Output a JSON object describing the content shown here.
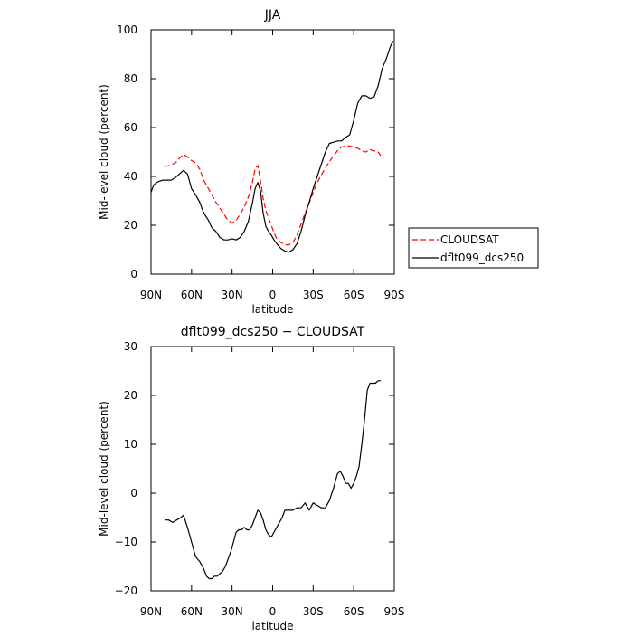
{
  "chart_data": [
    {
      "type": "line",
      "title": "JJA",
      "xlabel": "latitude",
      "ylabel": "Mid-level cloud (percent)",
      "xlim": [
        90,
        -90
      ],
      "ylim": [
        0,
        100
      ],
      "x_ticks": [
        90,
        60,
        30,
        0,
        -30,
        -60,
        -90
      ],
      "x_tick_labels": [
        "90N",
        "60N",
        "30N",
        "0",
        "30S",
        "60S",
        "90S"
      ],
      "y_ticks": [
        0,
        20,
        40,
        60,
        80,
        100
      ],
      "y_tick_labels": [
        "0",
        "20",
        "40",
        "60",
        "80",
        "100"
      ],
      "legend": {
        "placement": "right",
        "entries": [
          "CLOUDSAT",
          "dflt099_dcs250"
        ]
      },
      "series": [
        {
          "name": "CLOUDSAT",
          "color": "#ff0000",
          "dash": "dashed",
          "x": [
            80,
            76,
            72,
            69,
            66,
            63,
            60,
            57,
            54,
            51,
            48,
            45,
            42,
            39,
            36,
            33,
            30,
            27,
            24,
            21,
            18,
            15,
            13,
            11,
            9,
            7,
            5,
            3,
            1,
            -1,
            -3,
            -6,
            -9,
            -12,
            -15,
            -18,
            -21,
            -24,
            -27,
            -30,
            -33,
            -36,
            -39,
            -42,
            -45,
            -48,
            -51,
            -54,
            -57,
            -60,
            -63,
            -66,
            -69,
            -72,
            -75,
            -78,
            -80
          ],
          "y": [
            44,
            44.5,
            45.5,
            47.5,
            49,
            48,
            46.5,
            45.5,
            43,
            38.5,
            35.5,
            32.5,
            29.5,
            27,
            24.5,
            22,
            21,
            22,
            24.5,
            27.5,
            31.5,
            37.5,
            43,
            44.5,
            38,
            31,
            26,
            23,
            20,
            17,
            14.5,
            13,
            12,
            12,
            13,
            16,
            20.5,
            25,
            29,
            33.5,
            37.5,
            40.5,
            43.5,
            46,
            48.5,
            50.5,
            52,
            52.5,
            52.5,
            52,
            51.5,
            50.5,
            50,
            51,
            50.5,
            50,
            48.5
          ]
        },
        {
          "name": "dflt099_dcs250",
          "color": "#000000",
          "dash": "solid",
          "x": [
            90,
            88,
            86,
            84,
            81,
            78,
            75,
            72,
            69,
            66,
            63,
            60,
            57,
            54,
            51,
            48,
            45,
            42,
            39,
            36,
            33,
            30,
            27,
            24,
            21,
            18,
            15,
            13,
            11,
            9,
            7,
            5,
            3,
            1,
            -1,
            -3,
            -6,
            -9,
            -12,
            -15,
            -18,
            -21,
            -24,
            -27,
            -30,
            -33,
            -36,
            -39,
            -42,
            -45,
            -48,
            -51,
            -54,
            -57,
            -60,
            -63,
            -66,
            -69,
            -72,
            -75,
            -78,
            -81,
            -84,
            -87,
            -89
          ],
          "y": [
            33.5,
            36.5,
            37.5,
            38,
            38.5,
            38.5,
            38.5,
            39.5,
            41,
            42.5,
            41,
            35,
            32.5,
            29.5,
            25,
            22.5,
            19,
            17.5,
            15,
            14,
            14,
            14.5,
            14,
            15,
            17.5,
            21.5,
            29,
            35,
            37.5,
            34,
            25,
            19.5,
            17.5,
            16,
            14,
            12.5,
            10.5,
            9.5,
            9,
            10,
            12.5,
            17.5,
            24,
            29.5,
            35,
            40,
            45,
            50,
            53.5,
            54,
            54.5,
            54.5,
            56,
            57,
            63,
            70,
            73,
            73,
            72,
            72.5,
            77,
            84,
            88,
            93,
            95.5
          ]
        }
      ]
    },
    {
      "type": "line",
      "title": "dflt099_dcs250 − CLOUDSAT",
      "xlabel": "latitude",
      "ylabel": "Mid-level cloud (percent)",
      "xlim": [
        90,
        -90
      ],
      "ylim": [
        -20,
        30
      ],
      "x_ticks": [
        90,
        60,
        30,
        0,
        -30,
        -60,
        -90
      ],
      "x_tick_labels": [
        "90N",
        "60N",
        "30N",
        "0",
        "30S",
        "60S",
        "90S"
      ],
      "y_ticks": [
        -20,
        -10,
        0,
        10,
        20,
        30
      ],
      "y_tick_labels": [
        "−20",
        "−10",
        "0",
        "10",
        "20",
        "30"
      ],
      "series": [
        {
          "color": "#000000",
          "dash": "solid",
          "x": [
            80,
            77,
            74,
            71,
            68,
            66,
            63,
            60,
            57,
            54,
            51,
            49,
            47,
            45,
            43,
            41,
            39,
            37,
            35,
            33,
            31,
            29,
            27,
            25,
            23,
            21,
            19,
            17,
            15,
            13,
            11,
            9,
            7,
            5,
            3,
            1,
            -1,
            -3,
            -5,
            -7,
            -9,
            -12,
            -15,
            -18,
            -21,
            -24,
            -27,
            -30,
            -33,
            -36,
            -39,
            -42,
            -45,
            -48,
            -50,
            -52,
            -54,
            -56,
            -58,
            -60,
            -62,
            -64,
            -66,
            -68,
            -70,
            -72,
            -74,
            -76,
            -78,
            -80
          ],
          "y": [
            -5.5,
            -5.5,
            -6,
            -5.5,
            -5,
            -4.5,
            -7,
            -10,
            -13,
            -14,
            -15.5,
            -17,
            -17.5,
            -17.5,
            -17,
            -17,
            -16.5,
            -16,
            -15,
            -13.5,
            -12,
            -10,
            -8,
            -7.5,
            -7.5,
            -7,
            -7.5,
            -7.5,
            -6.5,
            -5,
            -3.5,
            -4,
            -5.5,
            -7.5,
            -8.5,
            -9,
            -8,
            -7,
            -6,
            -5,
            -3.5,
            -3.5,
            -3.5,
            -3,
            -3,
            -2,
            -3.5,
            -2,
            -2.5,
            -3,
            -3,
            -1.5,
            1,
            4,
            4.5,
            3.5,
            2,
            2,
            1,
            2,
            3.5,
            5.5,
            10,
            15,
            21,
            22.5,
            22.5,
            22.5,
            23,
            23
          ]
        }
      ]
    }
  ]
}
